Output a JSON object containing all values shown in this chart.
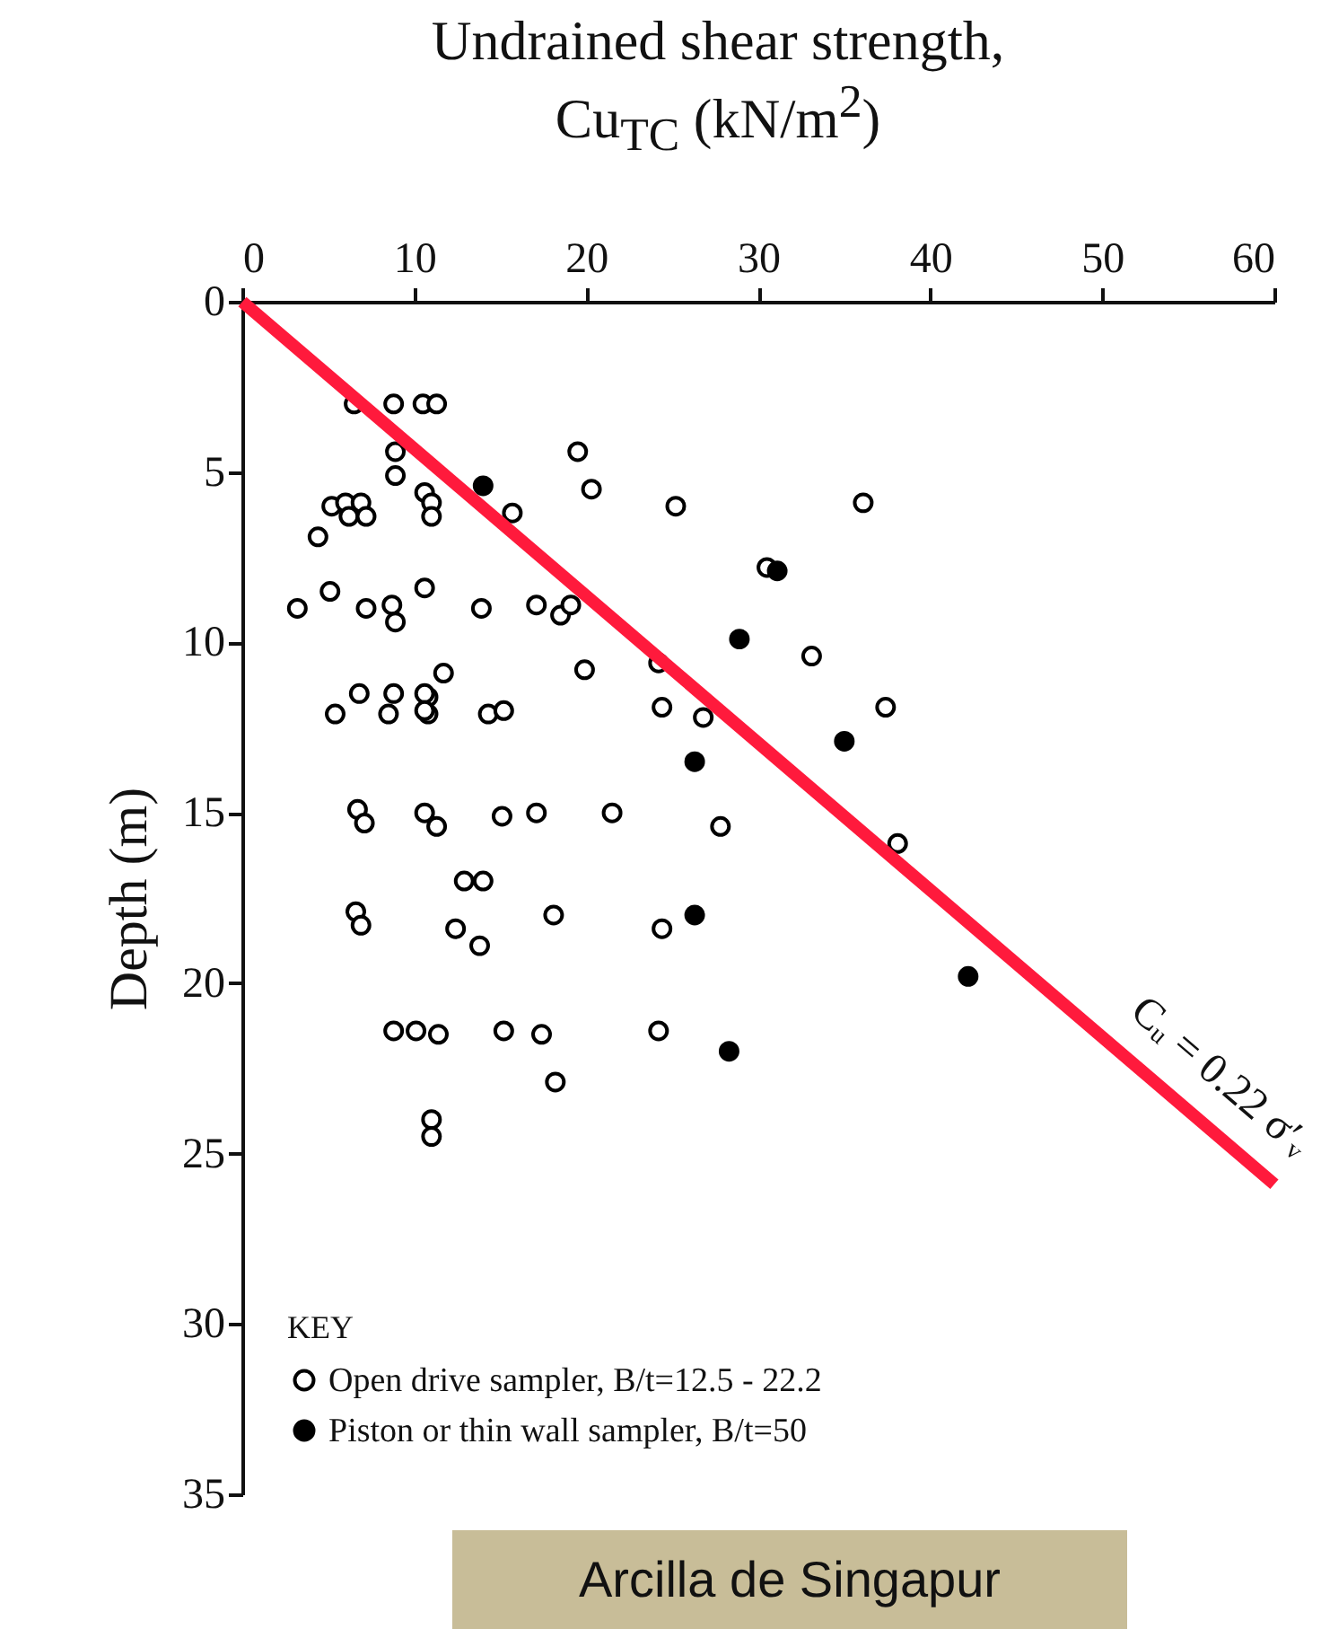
{
  "chart_data": {
    "type": "scatter",
    "xlabel": "Undrained shear strength, Cu$_{TC}$ (kN/m$^{2}$)",
    "ylabel": "Depth (m)",
    "legend_title": "KEY",
    "legend": "bottom left",
    "grid": false,
    "xlim": [
      0,
      60
    ],
    "xticks": [
      0,
      10,
      20,
      30,
      40,
      50,
      60
    ],
    "ylim": [
      35,
      0
    ],
    "yticks": [
      0,
      5,
      10,
      15,
      20,
      25,
      30,
      35
    ],
    "series": [
      {
        "name": "Open drive sampler, B/t=12.5 - 22.2",
        "color": "#000000",
        "marker": "circle",
        "x": [
          6.5,
          8.8,
          10.5,
          11.3,
          8.9,
          8.9,
          19.5,
          20.3,
          25.2,
          15.7,
          5.2,
          6.0,
          6.9,
          6.2,
          7.2,
          4.4,
          10.6,
          11.0,
          11.0,
          3.2,
          5.1,
          7.2,
          8.7,
          8.9,
          10.6,
          13.9,
          17.1,
          18.5,
          19.1,
          11.7,
          19.9,
          36.1,
          30.5,
          33.1,
          37.4,
          24.4,
          26.8,
          24.2,
          10.8,
          10.8,
          14.3,
          15.2,
          5.4,
          6.8,
          8.8,
          8.5,
          10.6,
          10.6,
          6.7,
          7.1,
          10.6,
          11.3,
          15.1,
          17.1,
          21.5,
          27.8,
          12.9,
          14.0,
          6.6,
          6.9,
          12.4,
          13.8,
          18.1,
          24.4,
          8.8,
          10.1,
          11.4,
          15.2,
          17.4,
          24.2,
          18.2,
          11.0,
          11.0,
          38.1
        ],
        "values": [
          3.0,
          3.0,
          3.0,
          3.0,
          4.4,
          5.1,
          4.4,
          5.5,
          6.0,
          6.2,
          6.0,
          5.9,
          5.9,
          6.3,
          6.3,
          6.9,
          5.6,
          5.9,
          6.3,
          9.0,
          8.5,
          9.0,
          8.9,
          9.4,
          8.4,
          9.0,
          8.9,
          9.2,
          8.9,
          10.9,
          10.8,
          5.9,
          7.8,
          10.4,
          11.9,
          11.9,
          12.2,
          10.6,
          11.6,
          12.1,
          12.1,
          12.0,
          12.1,
          11.5,
          11.5,
          12.1,
          11.5,
          12.0,
          14.9,
          15.3,
          15.0,
          15.4,
          15.1,
          15.0,
          15.0,
          15.4,
          17.0,
          17.0,
          17.9,
          18.3,
          18.4,
          18.9,
          18.0,
          18.4,
          21.4,
          21.4,
          21.5,
          21.4,
          21.5,
          21.4,
          22.9,
          24.0,
          24.5,
          15.9
        ]
      },
      {
        "name": "Piston or thin wall sampler, B/t=50",
        "color": "#000000",
        "marker": "circle",
        "x": [
          14.0,
          28.9,
          31.1,
          35.0,
          26.3,
          26.3,
          28.3,
          42.2
        ],
        "values": [
          5.4,
          9.9,
          7.9,
          12.9,
          13.5,
          18.0,
          22.0,
          19.8
        ]
      },
      {
        "type": "line",
        "color": "#ff1a3c",
        "x": [
          0,
          60
        ],
        "values": [
          0,
          25.9
        ]
      }
    ],
    "annotations": [
      "Cᵤ = 0.22 σ′ᵥ",
      "Arcilla de Singapur"
    ]
  }
}
